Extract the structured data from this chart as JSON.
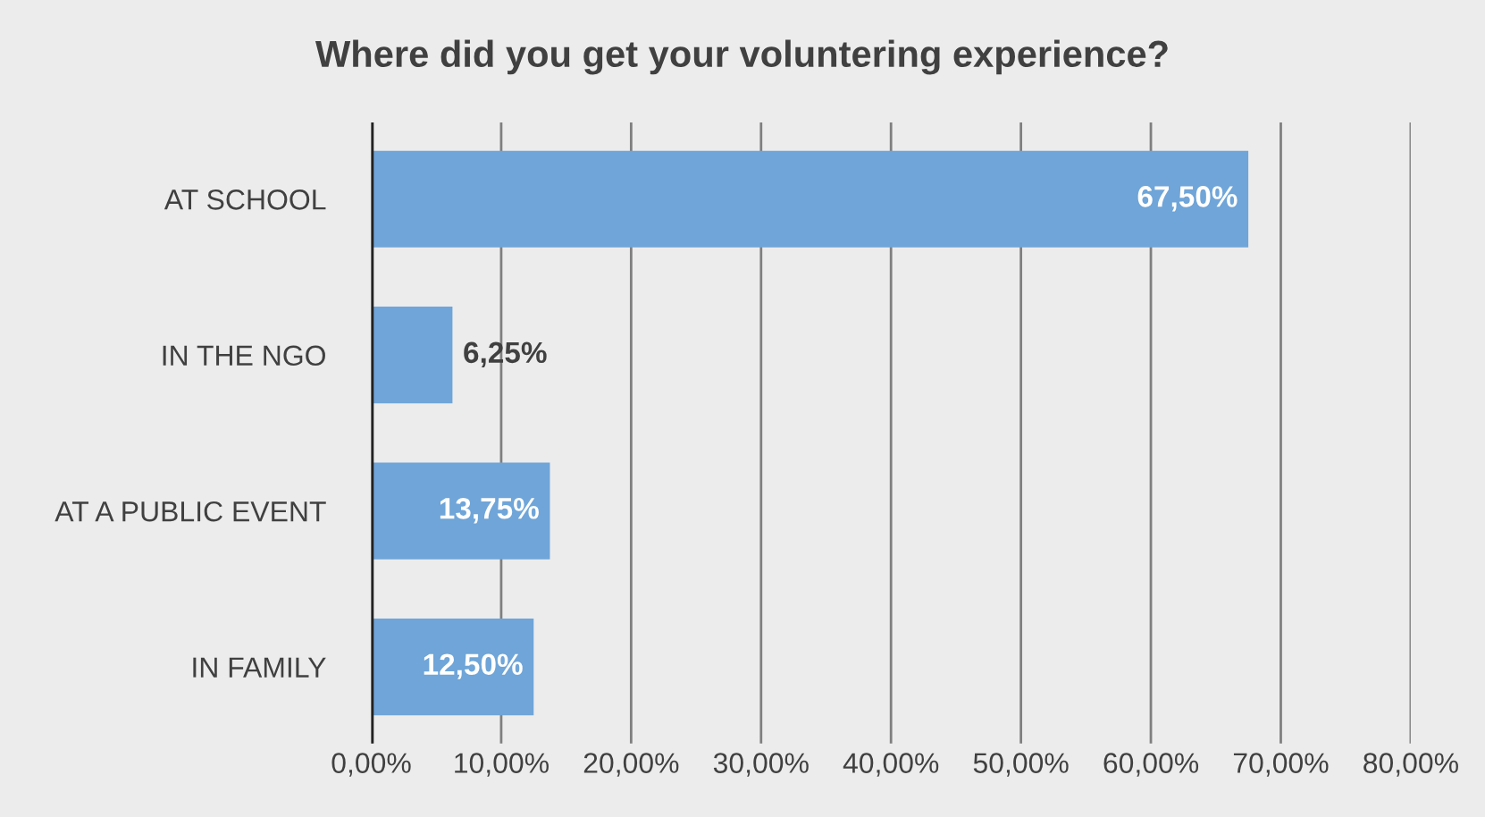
{
  "chart_data": {
    "type": "bar",
    "orientation": "horizontal",
    "title": "Where did you get your voluntering experience?",
    "categories": [
      "AT SCHOOL",
      "IN THE NGO",
      "AT A PUBLIC EVENT",
      "IN FAMILY"
    ],
    "values": [
      67.5,
      6.25,
      13.75,
      12.5
    ],
    "value_labels": [
      "67,50%",
      "6,25%",
      "13,75%",
      "12,50%"
    ],
    "color": "#6fa5d8",
    "xlim": [
      0,
      80
    ],
    "xticks": [
      {
        "value": 0,
        "label": "0,00%"
      },
      {
        "value": 10,
        "label": "10,00%"
      },
      {
        "value": 20,
        "label": "20,00%"
      },
      {
        "value": 30,
        "label": "30,00%"
      },
      {
        "value": 40,
        "label": "40,00%"
      },
      {
        "value": 50,
        "label": "50,00%"
      },
      {
        "value": 60,
        "label": "60,00%"
      },
      {
        "value": 70,
        "label": "70,00%"
      },
      {
        "value": 80,
        "label": "80,00%"
      }
    ],
    "grid": "x"
  }
}
